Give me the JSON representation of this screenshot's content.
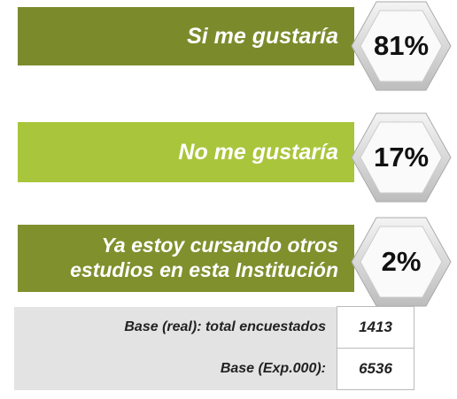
{
  "items": [
    {
      "label": "Si me gustaría",
      "value": "81%"
    },
    {
      "label": "No me gustaría",
      "value": "17%"
    },
    {
      "label": "Ya estoy cursando otros estudios en esta Institución",
      "value": "2%"
    }
  ],
  "table": {
    "rows": [
      [
        "Base (real): total encuestados",
        "1413"
      ],
      [
        "Base (Exp.000):",
        "6536"
      ]
    ]
  }
}
